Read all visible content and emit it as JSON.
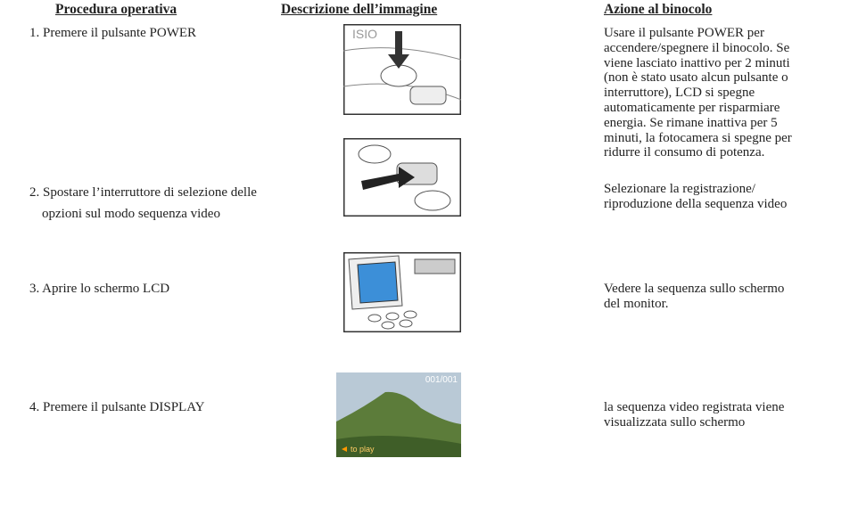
{
  "header": {
    "procedure": "Procedura operativa",
    "image": "Descrizione dell’immagine",
    "action": "Azione al binocolo"
  },
  "rows": [
    {
      "procedure": [
        "1. Premere il pulsante POWER"
      ],
      "action": [
        "Usare il pulsante POWER per",
        "accendere/spegnere il binocolo. Se",
        "viene lasciato inattivo per 2 minuti",
        "(non è stato usato alcun pulsante o",
        "interruttore), LCD si spegne",
        "automaticamente per risparmiare",
        "energia. Se rimane inattiva per 5",
        "minuti, la fotocamera si spegne per",
        "ridurre il consumo di potenza."
      ]
    },
    {
      "procedure": [
        "2. Spostare l’interruttore di selezione delle",
        "opzioni sul modo sequenza video"
      ],
      "action": [
        "Selezionare la registrazione/",
        "riproduzione della sequenza video"
      ]
    },
    {
      "procedure": [
        "3. Aprire lo schermo LCD"
      ],
      "action": [
        "Vedere la sequenza sullo schermo",
        "del monitor."
      ]
    },
    {
      "procedure": [
        "4. Premere il pulsante DISPLAY"
      ],
      "action": [
        "la sequenza video registrata viene",
        "visualizzata sullo schermo"
      ],
      "image_texts": {
        "counter": "001/001",
        "hint": "to play"
      }
    }
  ]
}
